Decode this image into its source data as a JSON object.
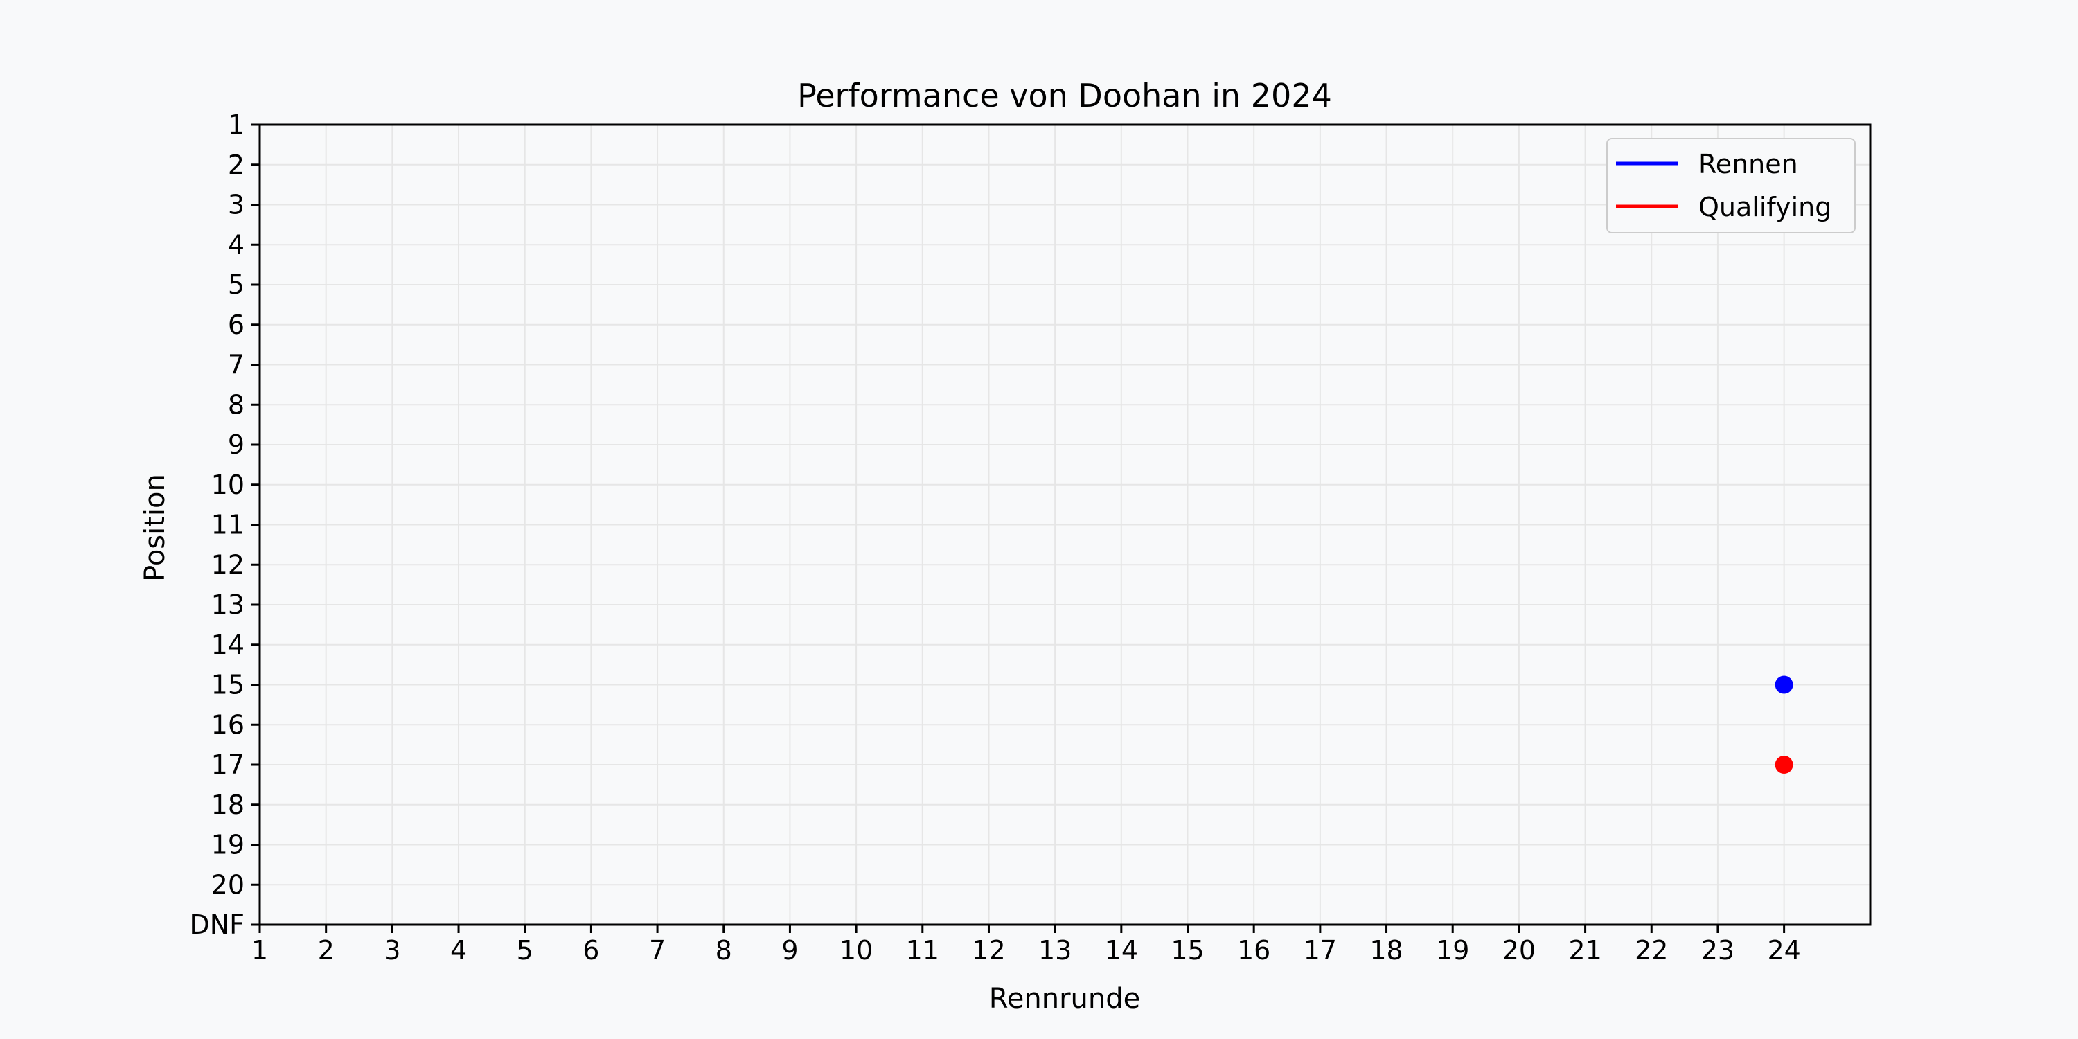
{
  "chart_data": {
    "type": "scatter",
    "title": "Performance von Doohan in 2024",
    "xlabel": "Rennrunde",
    "ylabel": "Position",
    "x_ticks": [
      1,
      2,
      3,
      4,
      5,
      6,
      7,
      8,
      9,
      10,
      11,
      12,
      13,
      14,
      15,
      16,
      17,
      18,
      19,
      20,
      21,
      22,
      23,
      24
    ],
    "y_ticks": [
      "1",
      "2",
      "3",
      "4",
      "5",
      "6",
      "7",
      "8",
      "9",
      "10",
      "11",
      "12",
      "13",
      "14",
      "15",
      "16",
      "17",
      "18",
      "19",
      "20",
      "DNF"
    ],
    "xlim": [
      1,
      25.3
    ],
    "ylim": [
      1,
      21
    ],
    "y_inverted": true,
    "grid": true,
    "legend_position": "top-right",
    "series": [
      {
        "name": "Rennen",
        "color": "#0000ff",
        "points": [
          {
            "x": 24,
            "y": 15
          }
        ]
      },
      {
        "name": "Qualifying",
        "color": "#ff0000",
        "points": [
          {
            "x": 24,
            "y": 17
          }
        ]
      }
    ]
  }
}
